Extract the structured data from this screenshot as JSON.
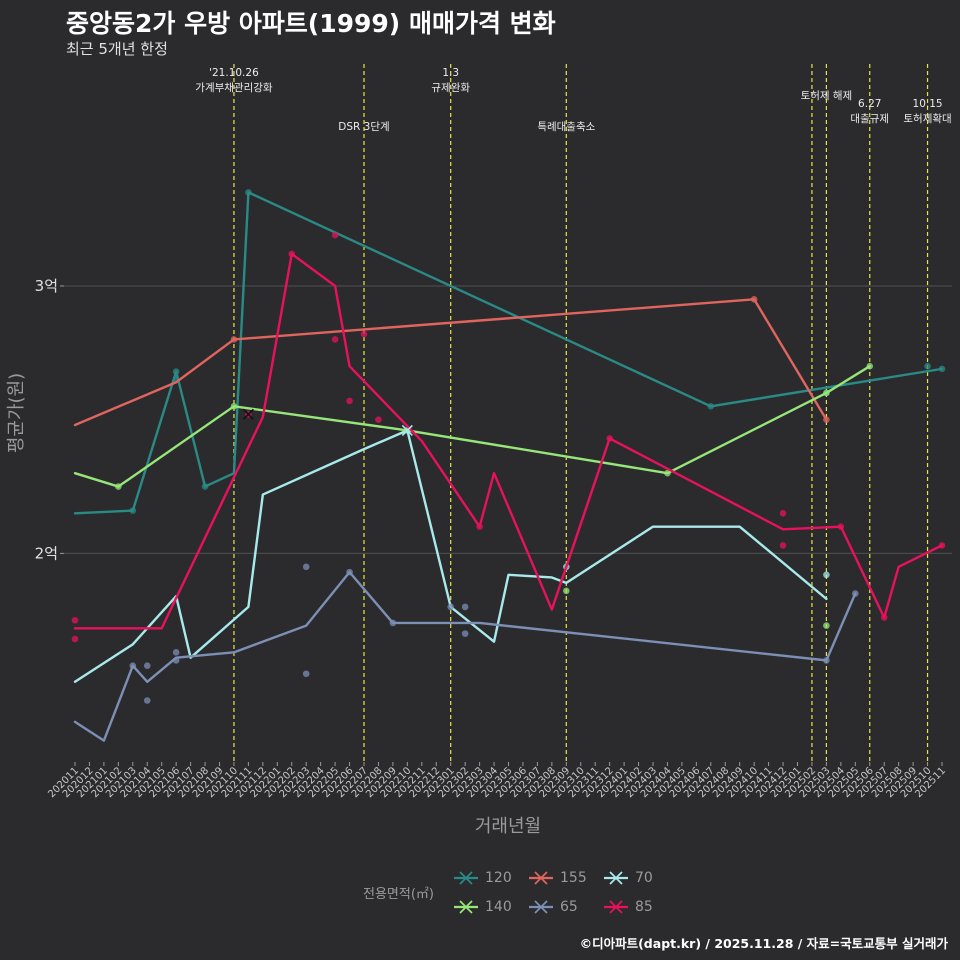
{
  "title": "중앙동2가 우방 아파트(1999) 매매가격 변화",
  "subtitle": "최근 5개년 한정",
  "caption": "©디아파트(dapt.kr) / 2025.11.28 / 자료=국토교통부 실거래가",
  "legend": {
    "title": "전용면적(㎡)"
  },
  "colors": {
    "background": "#2b2b2d",
    "grid": "#4a4a4d",
    "event_line": "#e6e64a"
  },
  "chart_data": {
    "type": "line",
    "xlabel": "거래년월",
    "ylabel": "평균가(원)",
    "ylim": [
      1.22,
      3.83
    ],
    "y_unit": "억",
    "yticks": [
      {
        "value": 2,
        "label": "2억"
      },
      {
        "value": 3,
        "label": "3억"
      }
    ],
    "categories": [
      "202011",
      "202012",
      "202101",
      "202102",
      "202103",
      "202104",
      "202105",
      "202106",
      "202107",
      "202108",
      "202109",
      "202110",
      "202111",
      "202112",
      "202201",
      "202202",
      "202203",
      "202204",
      "202205",
      "202206",
      "202207",
      "202208",
      "202209",
      "202210",
      "202211",
      "202212",
      "202301",
      "202302",
      "202303",
      "202304",
      "202305",
      "202306",
      "202307",
      "202308",
      "202309",
      "202310",
      "202311",
      "202312",
      "202401",
      "202402",
      "202403",
      "202404",
      "202405",
      "202406",
      "202407",
      "202408",
      "202409",
      "202410",
      "202411",
      "202412",
      "202501",
      "202502",
      "202503",
      "202504",
      "202505",
      "202506",
      "202507",
      "202508",
      "202509",
      "202510",
      "202511"
    ],
    "events": [
      {
        "x": 11,
        "label": [
          "'21.10.26",
          "가계부채관리강화"
        ],
        "level": 0
      },
      {
        "x": 20,
        "label": [
          "DSR 3단계"
        ],
        "level": 1
      },
      {
        "x": 26,
        "label": [
          "1.3",
          "규제완화"
        ],
        "level": 0
      },
      {
        "x": 34,
        "label": [
          "특례대출축소"
        ],
        "level": 1
      },
      {
        "x": 51,
        "label": [],
        "level": 0
      },
      {
        "x": 52,
        "label": [
          "토허제 해제"
        ],
        "level": 0
      },
      {
        "x": 55,
        "label": [
          "6.27",
          "대출규제"
        ],
        "level": 1
      },
      {
        "x": 59,
        "label": [
          "10.15",
          "토허제확대"
        ],
        "level": 1
      }
    ],
    "series": [
      {
        "name": "120",
        "color": "#2a8a86",
        "marker": "x",
        "line": [
          [
            0,
            2.15
          ],
          [
            4,
            2.16
          ],
          [
            7,
            2.68
          ],
          [
            9,
            2.25
          ],
          [
            11,
            2.3
          ],
          [
            12,
            3.35
          ],
          [
            44,
            2.55
          ],
          [
            60,
            2.69
          ]
        ],
        "points": [
          [
            4,
            2.16
          ],
          [
            7,
            2.68
          ],
          [
            7,
            2.65
          ],
          [
            9,
            2.25
          ],
          [
            12,
            3.35
          ],
          [
            44,
            2.55
          ],
          [
            52,
            2.6
          ],
          [
            59,
            2.7
          ],
          [
            60,
            2.69
          ]
        ]
      },
      {
        "name": "155",
        "color": "#e0655e",
        "marker": "x",
        "line": [
          [
            0,
            2.48
          ],
          [
            7,
            2.64
          ],
          [
            11,
            2.8
          ],
          [
            47,
            2.95
          ],
          [
            52,
            2.5
          ]
        ],
        "points": [
          [
            11,
            2.8
          ],
          [
            47,
            2.95
          ],
          [
            52,
            2.5
          ]
        ]
      },
      {
        "name": "70",
        "color": "#a8eaec",
        "marker": "x",
        "line": [
          [
            0,
            1.52
          ],
          [
            4,
            1.66
          ],
          [
            7,
            1.84
          ],
          [
            8,
            1.61
          ],
          [
            12,
            1.8
          ],
          [
            13,
            2.22
          ],
          [
            20,
            2.39
          ],
          [
            23,
            2.46
          ],
          [
            26,
            1.8
          ],
          [
            29,
            1.67
          ],
          [
            30,
            1.92
          ],
          [
            33,
            1.91
          ],
          [
            34,
            1.89
          ],
          [
            40,
            2.1
          ],
          [
            46,
            2.1
          ],
          [
            52,
            1.83
          ]
        ],
        "points": [
          [
            23,
            2.46
          ],
          [
            34,
            1.95
          ],
          [
            52,
            1.92
          ]
        ]
      },
      {
        "name": "140",
        "color": "#97e67a",
        "marker": "x",
        "line": [
          [
            0,
            2.3
          ],
          [
            3,
            2.25
          ],
          [
            11,
            2.55
          ],
          [
            23,
            2.46
          ],
          [
            41,
            2.3
          ],
          [
            52,
            2.6
          ],
          [
            55,
            2.7
          ]
        ],
        "points": [
          [
            3,
            2.25
          ],
          [
            11,
            2.55
          ],
          [
            41,
            2.3
          ],
          [
            52,
            2.6
          ],
          [
            55,
            2.7
          ],
          [
            34,
            1.86
          ],
          [
            52,
            1.73
          ]
        ]
      },
      {
        "name": "65",
        "color": "#7c8fb5",
        "marker": "x",
        "line": [
          [
            0,
            1.37
          ],
          [
            2,
            1.3
          ],
          [
            4,
            1.58
          ],
          [
            5,
            1.52
          ],
          [
            7,
            1.61
          ],
          [
            11,
            1.63
          ],
          [
            16,
            1.73
          ],
          [
            19,
            1.93
          ],
          [
            22,
            1.74
          ],
          [
            28,
            1.74
          ],
          [
            52,
            1.6
          ],
          [
            54,
            1.85
          ]
        ],
        "points": [
          [
            4,
            1.58
          ],
          [
            5,
            1.58
          ],
          [
            5,
            1.45
          ],
          [
            7,
            1.63
          ],
          [
            7,
            1.6
          ],
          [
            16,
            1.95
          ],
          [
            16,
            1.55
          ],
          [
            19,
            1.93
          ],
          [
            22,
            1.74
          ],
          [
            26,
            1.8
          ],
          [
            27,
            1.8
          ],
          [
            27,
            1.7
          ],
          [
            52,
            1.6
          ],
          [
            54,
            1.85
          ]
        ]
      },
      {
        "name": "85",
        "color": "#e8115e",
        "marker": "x",
        "line": [
          [
            0,
            1.72
          ],
          [
            6,
            1.72
          ],
          [
            13,
            2.51
          ],
          [
            15,
            3.12
          ],
          [
            18,
            3.0
          ],
          [
            19,
            2.7
          ],
          [
            24,
            2.42
          ],
          [
            28,
            2.1
          ],
          [
            29,
            2.3
          ],
          [
            33,
            1.79
          ],
          [
            37,
            2.43
          ],
          [
            49,
            2.09
          ],
          [
            53,
            2.1
          ],
          [
            56,
            1.76
          ],
          [
            57,
            1.95
          ],
          [
            60,
            2.03
          ]
        ],
        "points": [
          [
            0,
            1.75
          ],
          [
            0,
            1.68
          ],
          [
            12,
            2.52
          ],
          [
            15,
            3.12
          ],
          [
            18,
            3.19
          ],
          [
            18,
            2.8
          ],
          [
            19,
            2.57
          ],
          [
            20,
            2.82
          ],
          [
            21,
            2.5
          ],
          [
            28,
            2.1
          ],
          [
            37,
            2.43
          ],
          [
            49,
            2.15
          ],
          [
            49,
            2.03
          ],
          [
            53,
            2.1
          ],
          [
            56,
            1.76
          ],
          [
            60,
            2.03
          ]
        ]
      }
    ],
    "legend_order": [
      "120",
      "155",
      "70",
      "140",
      "65",
      "85"
    ]
  }
}
